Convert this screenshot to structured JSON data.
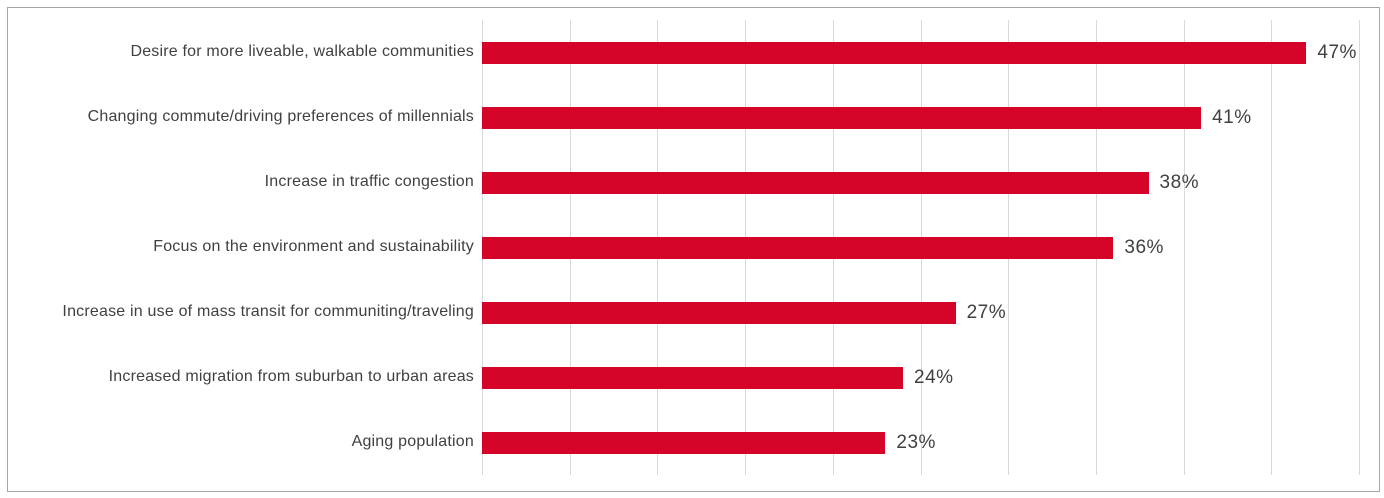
{
  "chart_data": {
    "type": "bar",
    "orientation": "horizontal",
    "title": "",
    "categories": [
      "Desire for more liveable, walkable communities",
      "Changing commute/driving preferences of millennials",
      "Increase in traffic congestion",
      "Focus on the environment and sustainability",
      "Increase in use of mass transit for communiting/traveling",
      "Increased migration from suburban to urban areas",
      "Aging population"
    ],
    "values": [
      47,
      41,
      38,
      36,
      27,
      24,
      23
    ],
    "value_labels": [
      "47%",
      "41%",
      "38%",
      "36%",
      "27%",
      "24%",
      "23%"
    ],
    "unit": "%",
    "xlabel": "",
    "ylabel": "",
    "xlim": [
      0,
      50
    ],
    "gridline_step": 5,
    "grid": true,
    "legend": false,
    "data_label_position": "outside-end"
  },
  "colors": {
    "bar": "#D40529",
    "gridline": "#D9D9D9",
    "text": "#404040",
    "frame_border": "#A6A6A6",
    "background": "#FFFFFF"
  }
}
